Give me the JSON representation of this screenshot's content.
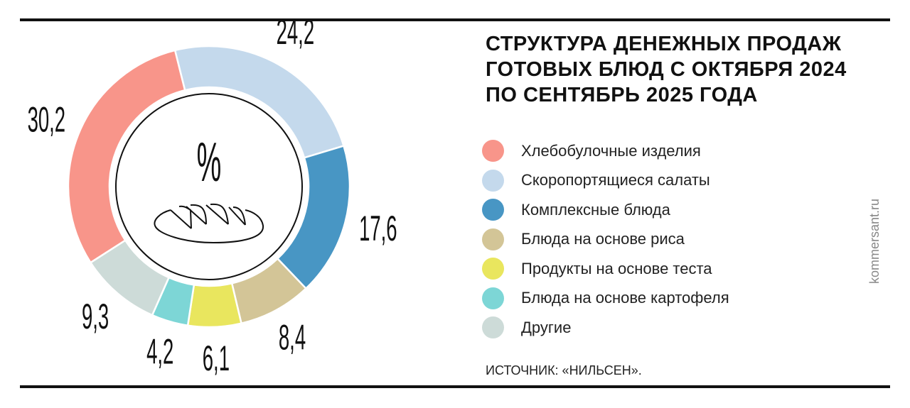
{
  "title_lines": [
    "СТРУКТУРА ДЕНЕЖНЫХ ПРОДАЖ",
    "ГОТОВЫХ БЛЮД С ОКТЯБРЯ 2024",
    "ПО СЕНТЯБРЬ 2025 ГОДА"
  ],
  "source": "ИСТОЧНИК: «НИЛЬСЕН».",
  "brand": "kommersant.ru",
  "center_label": "%",
  "center_icon": "bread-loaf-icon",
  "chart_data": {
    "type": "pie",
    "donut": true,
    "unit": "%",
    "title": "СТРУКТУРА ДЕНЕЖНЫХ ПРОДАЖ ГОТОВЫХ БЛЮД С ОКТЯБРЯ 2024 ПО СЕНТЯБРЬ 2025 ГОДА",
    "legend_position": "right",
    "slices": [
      {
        "name": "Хлебобулочные изделия",
        "value": 30.2,
        "label": "30,2",
        "color": "#f8958a"
      },
      {
        "name": "Скоропортящиеся салаты",
        "value": 24.2,
        "label": "24,2",
        "color": "#c4d9ec"
      },
      {
        "name": "Комплексные блюда",
        "value": 17.6,
        "label": "17,6",
        "color": "#4896c4"
      },
      {
        "name": "Блюда на основе риса",
        "value": 8.4,
        "label": "8,4",
        "color": "#d3c597"
      },
      {
        "name": "Продукты на основе теста",
        "value": 6.1,
        "label": "6,1",
        "color": "#e9e65e"
      },
      {
        "name": "Блюда на основе картофеля",
        "value": 4.2,
        "label": "4,2",
        "color": "#7dd6d6"
      },
      {
        "name": "Другие",
        "value": 9.3,
        "label": "9,3",
        "color": "#cddbd8"
      }
    ],
    "draw_order": [
      1,
      2,
      3,
      4,
      5,
      6,
      0
    ]
  }
}
